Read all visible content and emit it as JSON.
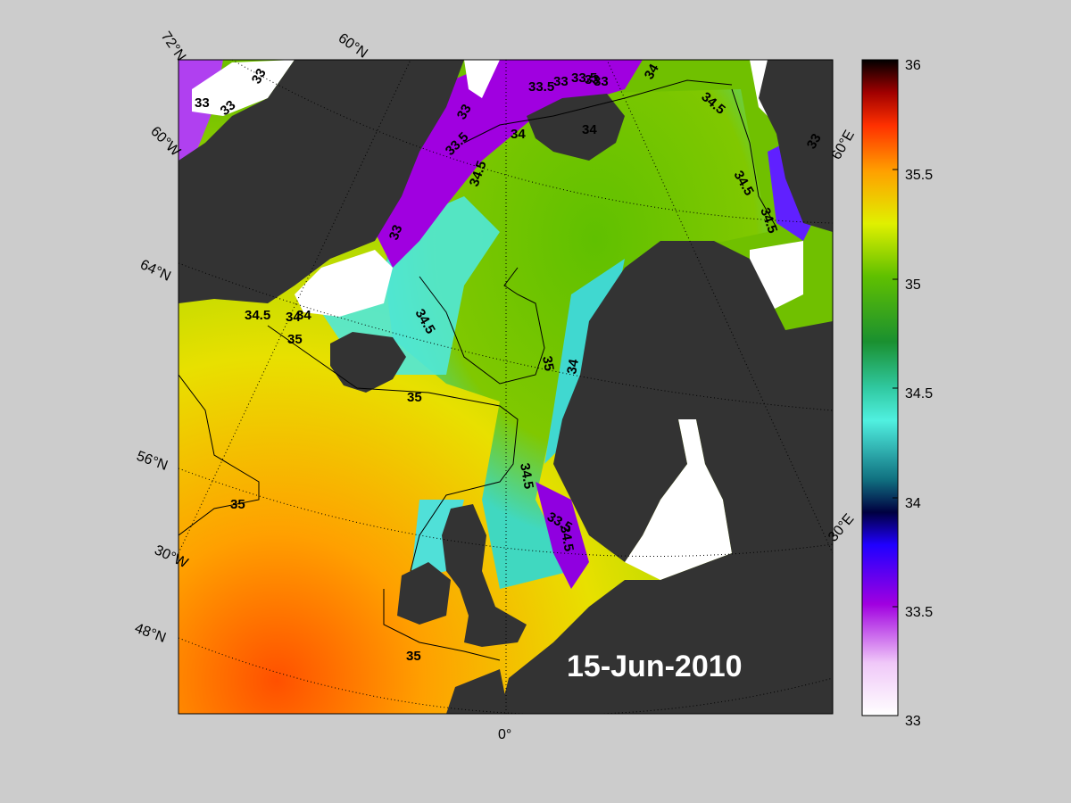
{
  "map": {
    "date_label": "15-Jun-2010",
    "lat_labels": [
      "72°N",
      "60°N",
      "64°N",
      "56°N",
      "48°N"
    ],
    "lon_labels": [
      "60°N",
      "60°W",
      "30°W",
      "0°",
      "30°E",
      "60°E"
    ],
    "contour_labels": [
      "33",
      "33",
      "33",
      "33",
      "33.5",
      "33",
      "33.5",
      "33",
      "34",
      "34.5",
      "34",
      "34",
      "34.5",
      "34.5",
      "33.5",
      "34.5",
      "33",
      "33",
      "33",
      "34",
      "34.5",
      "34.5",
      "34",
      "35",
      "35",
      "34.5",
      "35",
      "35",
      "34.5",
      "33.5",
      "34",
      "35"
    ],
    "colors": {
      "background": "#cccccc",
      "land": "#333333",
      "ice": "#ffffff",
      "salinity_33": "#ffffff",
      "salinity_33_5": "#a000e0",
      "salinity_34": "#3cb8b0",
      "salinity_34_5": "#40e0d0",
      "salinity_35": "#d8e000",
      "salinity_35_5": "#ff6000",
      "salinity_36": "#000000"
    }
  },
  "colorbar": {
    "ticks": [
      "36",
      "35.5",
      "35",
      "34.5",
      "34",
      "33.5",
      "33"
    ],
    "min": 33,
    "max": 36
  }
}
